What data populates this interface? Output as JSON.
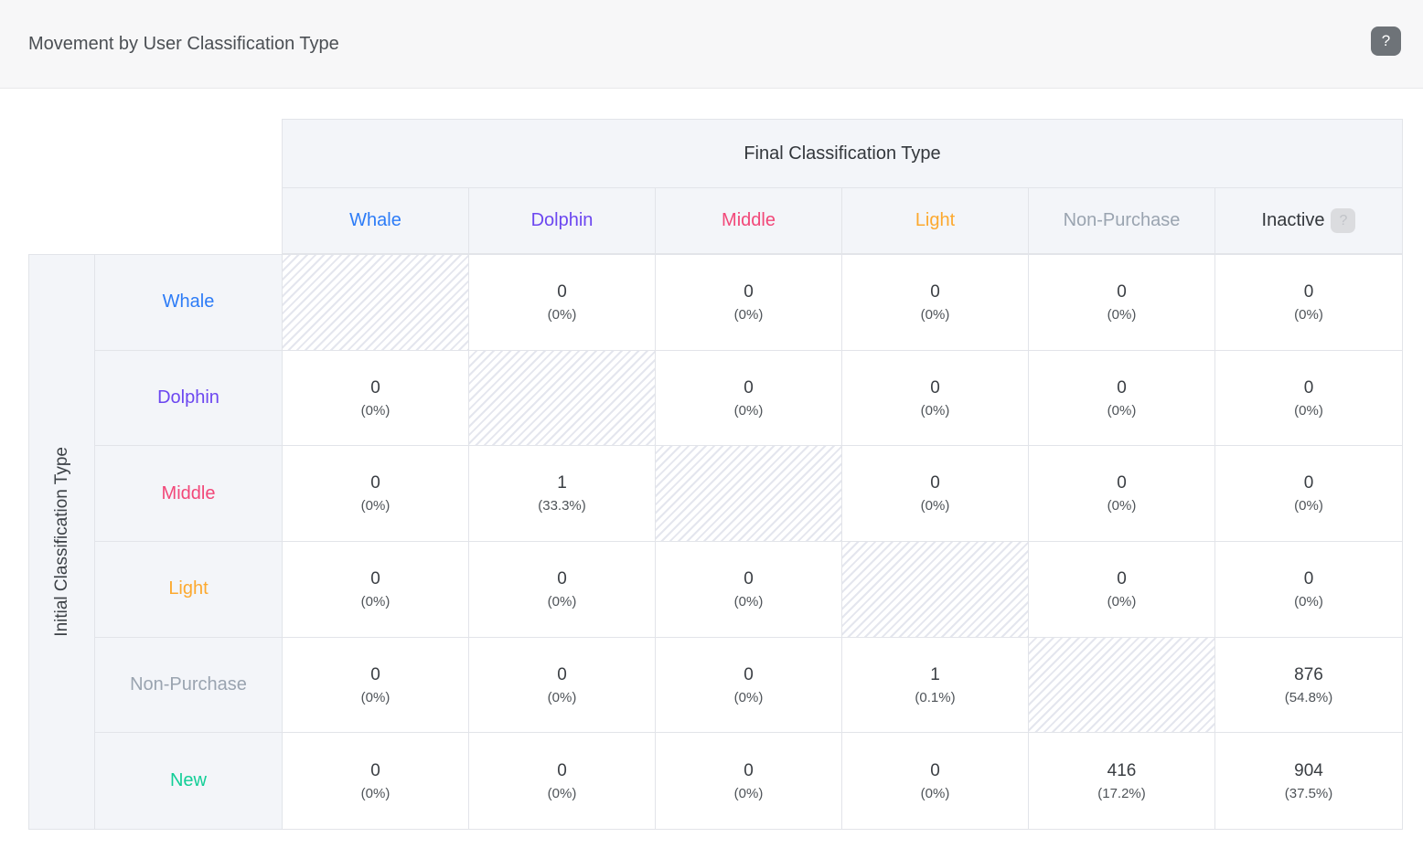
{
  "header": {
    "title": "Movement by User Classification Type",
    "help_label": "?"
  },
  "matrix": {
    "column_group_title": "Final Classification Type",
    "row_group_title": "Initial Classification Type",
    "inactive_help_label": "?",
    "columns": [
      {
        "label": "Whale",
        "color": "#2d7cf7",
        "has_help": false
      },
      {
        "label": "Dolphin",
        "color": "#6c47f0",
        "has_help": false
      },
      {
        "label": "Middle",
        "color": "#f24879",
        "has_help": false
      },
      {
        "label": "Light",
        "color": "#fca92f",
        "has_help": false
      },
      {
        "label": "Non-Purchase",
        "color": "#9aa4b0",
        "has_help": false
      },
      {
        "label": "Inactive",
        "color": "#33373c",
        "has_help": true
      }
    ],
    "rows": [
      {
        "label": "Whale",
        "color": "#2d7cf7",
        "cells": [
          {
            "type": "self"
          },
          {
            "type": "value",
            "value": "0",
            "pct": "(0%)"
          },
          {
            "type": "value",
            "value": "0",
            "pct": "(0%)"
          },
          {
            "type": "value",
            "value": "0",
            "pct": "(0%)"
          },
          {
            "type": "value",
            "value": "0",
            "pct": "(0%)"
          },
          {
            "type": "value",
            "value": "0",
            "pct": "(0%)"
          }
        ]
      },
      {
        "label": "Dolphin",
        "color": "#6c47f0",
        "cells": [
          {
            "type": "value",
            "value": "0",
            "pct": "(0%)"
          },
          {
            "type": "self"
          },
          {
            "type": "value",
            "value": "0",
            "pct": "(0%)"
          },
          {
            "type": "value",
            "value": "0",
            "pct": "(0%)"
          },
          {
            "type": "value",
            "value": "0",
            "pct": "(0%)"
          },
          {
            "type": "value",
            "value": "0",
            "pct": "(0%)"
          }
        ]
      },
      {
        "label": "Middle",
        "color": "#f24879",
        "cells": [
          {
            "type": "value",
            "value": "0",
            "pct": "(0%)"
          },
          {
            "type": "value",
            "value": "1",
            "pct": "(33.3%)"
          },
          {
            "type": "self"
          },
          {
            "type": "value",
            "value": "0",
            "pct": "(0%)"
          },
          {
            "type": "value",
            "value": "0",
            "pct": "(0%)"
          },
          {
            "type": "value",
            "value": "0",
            "pct": "(0%)"
          }
        ]
      },
      {
        "label": "Light",
        "color": "#fca92f",
        "cells": [
          {
            "type": "value",
            "value": "0",
            "pct": "(0%)"
          },
          {
            "type": "value",
            "value": "0",
            "pct": "(0%)"
          },
          {
            "type": "value",
            "value": "0",
            "pct": "(0%)"
          },
          {
            "type": "self"
          },
          {
            "type": "value",
            "value": "0",
            "pct": "(0%)"
          },
          {
            "type": "value",
            "value": "0",
            "pct": "(0%)"
          }
        ]
      },
      {
        "label": "Non-Purchase",
        "color": "#9aa4b0",
        "cells": [
          {
            "type": "value",
            "value": "0",
            "pct": "(0%)"
          },
          {
            "type": "value",
            "value": "0",
            "pct": "(0%)"
          },
          {
            "type": "value",
            "value": "0",
            "pct": "(0%)"
          },
          {
            "type": "value",
            "value": "1",
            "pct": "(0.1%)"
          },
          {
            "type": "self"
          },
          {
            "type": "value",
            "value": "876",
            "pct": "(54.8%)"
          }
        ]
      },
      {
        "label": "New",
        "color": "#12ce97",
        "cells": [
          {
            "type": "value",
            "value": "0",
            "pct": "(0%)"
          },
          {
            "type": "value",
            "value": "0",
            "pct": "(0%)"
          },
          {
            "type": "value",
            "value": "0",
            "pct": "(0%)"
          },
          {
            "type": "value",
            "value": "0",
            "pct": "(0%)"
          },
          {
            "type": "value",
            "value": "416",
            "pct": "(17.2%)"
          },
          {
            "type": "value",
            "value": "904",
            "pct": "(37.5%)"
          }
        ]
      }
    ]
  }
}
